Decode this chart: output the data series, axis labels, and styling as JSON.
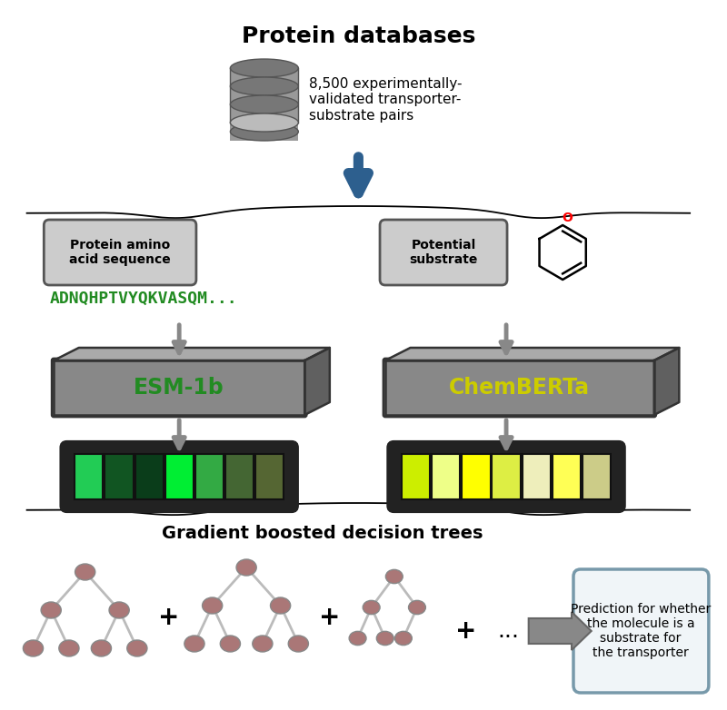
{
  "title": "Protein databases",
  "db_text": "8,500 experimentally-\nvalidated transporter-\nsubstrate pairs",
  "arrow_color": "#2d5f8e",
  "left_label": "Protein amino\nacid sequence",
  "left_seq": "ADNQHPTVYQKVASQM...",
  "left_seq_color": "#228B22",
  "left_model": "ESM-1b",
  "left_model_color": "#228B22",
  "right_label": "Potential\nsubstrate",
  "right_model": "ChemBERTa",
  "right_model_color": "#cccc00",
  "green_colors": [
    "#22cc55",
    "#115522",
    "#0a3d1a",
    "#00ee33",
    "#33aa44",
    "#446633",
    "#556633"
  ],
  "yellow_colors": [
    "#ccee00",
    "#eeff88",
    "#ffff00",
    "#ddee44",
    "#eeeebb",
    "#ffff55",
    "#cccc88"
  ],
  "gbdt_title": "Gradient boosted decision trees",
  "node_color": "#aa7777",
  "edge_color": "#aaaaaa",
  "pred_text": "Prediction for whether\nthe molecule is a\nsubstrate for\nthe transporter",
  "pred_box_color": "#7799aa",
  "bg_color": "#ffffff"
}
